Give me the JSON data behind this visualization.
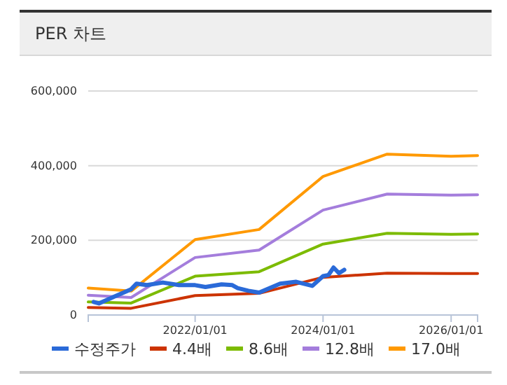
{
  "chart_data": {
    "type": "line",
    "title": "PER 차트",
    "xlim": [
      "2020-05-01",
      "2026-06-01"
    ],
    "xticks": [
      {
        "value": "2022-01-01",
        "label": "2022/01/01"
      },
      {
        "value": "2024-01-01",
        "label": "2024/01/01"
      },
      {
        "value": "2026-01-01",
        "label": "2026/01/01"
      }
    ],
    "ylim": [
      0,
      600000
    ],
    "yticks": [
      {
        "value": 0,
        "label": "0"
      },
      {
        "value": 200000,
        "label": "200,000"
      },
      {
        "value": 400000,
        "label": "400,000"
      },
      {
        "value": 600000,
        "label": "600,000"
      }
    ],
    "grid": "y",
    "legend": "bottom",
    "marker": "none",
    "line_style": "solid",
    "series": [
      {
        "name": "수정주가",
        "color": "#2a6ad8",
        "x": [
          "2020-06",
          "2020-07",
          "2020-10",
          "2021-01",
          "2021-02",
          "2021-04",
          "2021-07",
          "2021-10",
          "2022-01",
          "2022-03",
          "2022-06",
          "2022-08",
          "2022-09",
          "2022-11",
          "2023-01",
          "2023-05",
          "2023-08",
          "2023-11",
          "2024-01",
          "2024-02",
          "2024-03",
          "2024-04",
          "2024-05"
        ],
        "values": [
          35000,
          31000,
          50000,
          69000,
          84000,
          80000,
          87000,
          80000,
          80000,
          75000,
          82000,
          80000,
          72000,
          65000,
          60000,
          84000,
          89000,
          78000,
          104000,
          107000,
          127000,
          112000,
          121000
        ]
      },
      {
        "name": "4.4배",
        "color": "#cc3300",
        "x": [
          "2020-05",
          "2021-01",
          "2022-01",
          "2023-01",
          "2024-01",
          "2025-01",
          "2026-01",
          "2026-06"
        ],
        "values": [
          20000,
          18000,
          52000,
          58000,
          101000,
          112000,
          111000,
          111000
        ]
      },
      {
        "name": "8.6배",
        "color": "#7cbb00",
        "x": [
          "2020-05",
          "2021-01",
          "2022-01",
          "2023-01",
          "2024-01",
          "2025-01",
          "2026-01",
          "2026-06"
        ],
        "values": [
          35000,
          32000,
          104000,
          116000,
          190000,
          219000,
          216000,
          217000
        ]
      },
      {
        "name": "12.8배",
        "color": "#a47ddc",
        "x": [
          "2020-05",
          "2021-01",
          "2022-01",
          "2023-01",
          "2024-01",
          "2025-01",
          "2026-01",
          "2026-06"
        ],
        "values": [
          53000,
          47000,
          154000,
          174000,
          281000,
          324000,
          321000,
          322000
        ]
      },
      {
        "name": "17.0배",
        "color": "#ff9900",
        "x": [
          "2020-05",
          "2021-01",
          "2022-01",
          "2023-01",
          "2024-01",
          "2025-01",
          "2026-01",
          "2026-06"
        ],
        "values": [
          72000,
          64000,
          202000,
          229000,
          371000,
          431000,
          425000,
          427000
        ]
      }
    ]
  }
}
